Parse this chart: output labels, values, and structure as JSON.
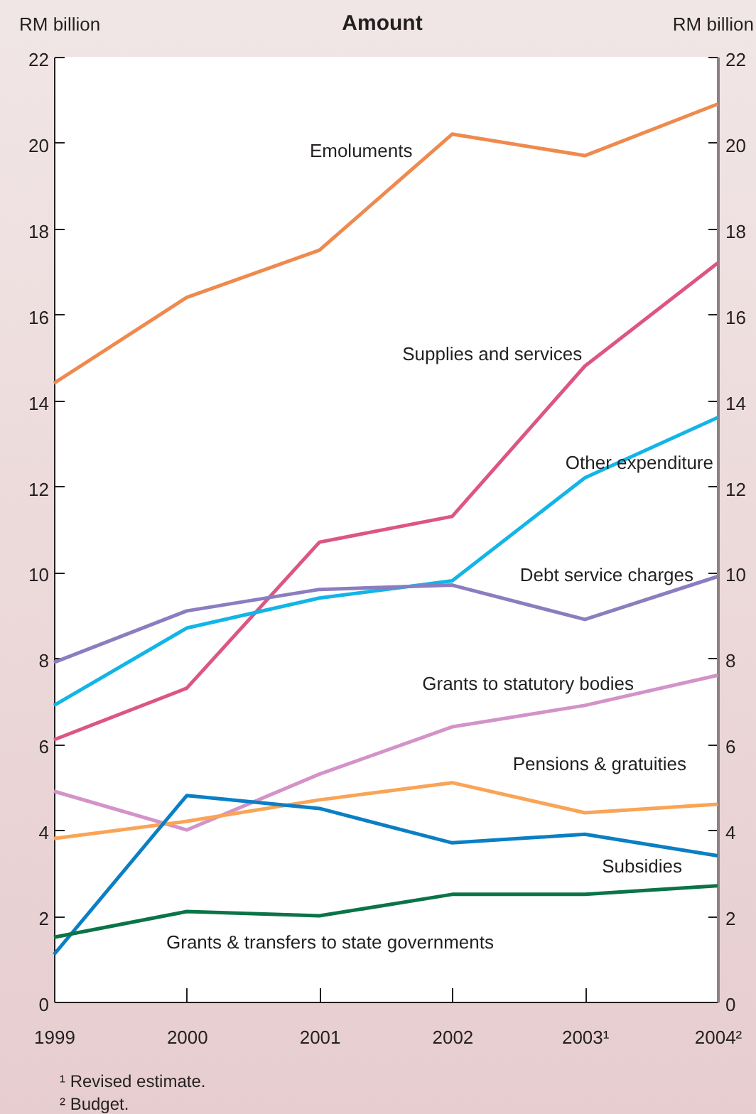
{
  "chart_data": {
    "type": "line",
    "title": "Amount",
    "ylabel": "RM billion",
    "y2label": "RM billion",
    "categories": [
      "1999",
      "2000",
      "2001",
      "2002",
      "2003¹",
      "2004²"
    ],
    "series": [
      {
        "name": "Emoluments",
        "color": "#ef8a4f",
        "values": [
          14.4,
          16.4,
          17.5,
          20.2,
          19.7,
          20.9
        ]
      },
      {
        "name": "Supplies and services",
        "color": "#dd5583",
        "values": [
          6.1,
          7.3,
          10.7,
          11.3,
          14.8,
          17.2
        ]
      },
      {
        "name": "Other expenditure",
        "color": "#12b5e6",
        "values": [
          6.9,
          8.7,
          9.4,
          9.8,
          12.2,
          13.6
        ]
      },
      {
        "name": "Debt service charges",
        "color": "#8b7dbf",
        "values": [
          7.9,
          9.1,
          9.6,
          9.7,
          8.9,
          9.9
        ]
      },
      {
        "name": "Grants to statutory bodies",
        "color": "#d393c8",
        "values": [
          4.9,
          4.0,
          5.3,
          6.4,
          6.9,
          7.6
        ]
      },
      {
        "name": "Pensions & gratuities",
        "color": "#f9a456",
        "values": [
          3.8,
          4.2,
          4.7,
          5.1,
          4.4,
          4.6
        ]
      },
      {
        "name": "Subsidies",
        "color": "#0a7fc4",
        "values": [
          1.1,
          4.8,
          4.5,
          3.7,
          3.9,
          3.4
        ]
      },
      {
        "name": "Grants & transfers to state governments",
        "color": "#0a7447",
        "values": [
          1.5,
          2.1,
          2.0,
          2.5,
          2.5,
          2.7
        ]
      }
    ],
    "ylim": [
      0,
      22
    ],
    "yticks": [
      0,
      2,
      4,
      6,
      8,
      10,
      12,
      14,
      16,
      18,
      20,
      22
    ],
    "y2lim": [
      0,
      22
    ],
    "y2ticks": [
      0,
      2,
      4,
      6,
      8,
      10,
      12,
      14,
      16,
      18,
      20,
      22
    ],
    "annotations": [
      "¹ Revised estimate.",
      "² Budget."
    ]
  }
}
